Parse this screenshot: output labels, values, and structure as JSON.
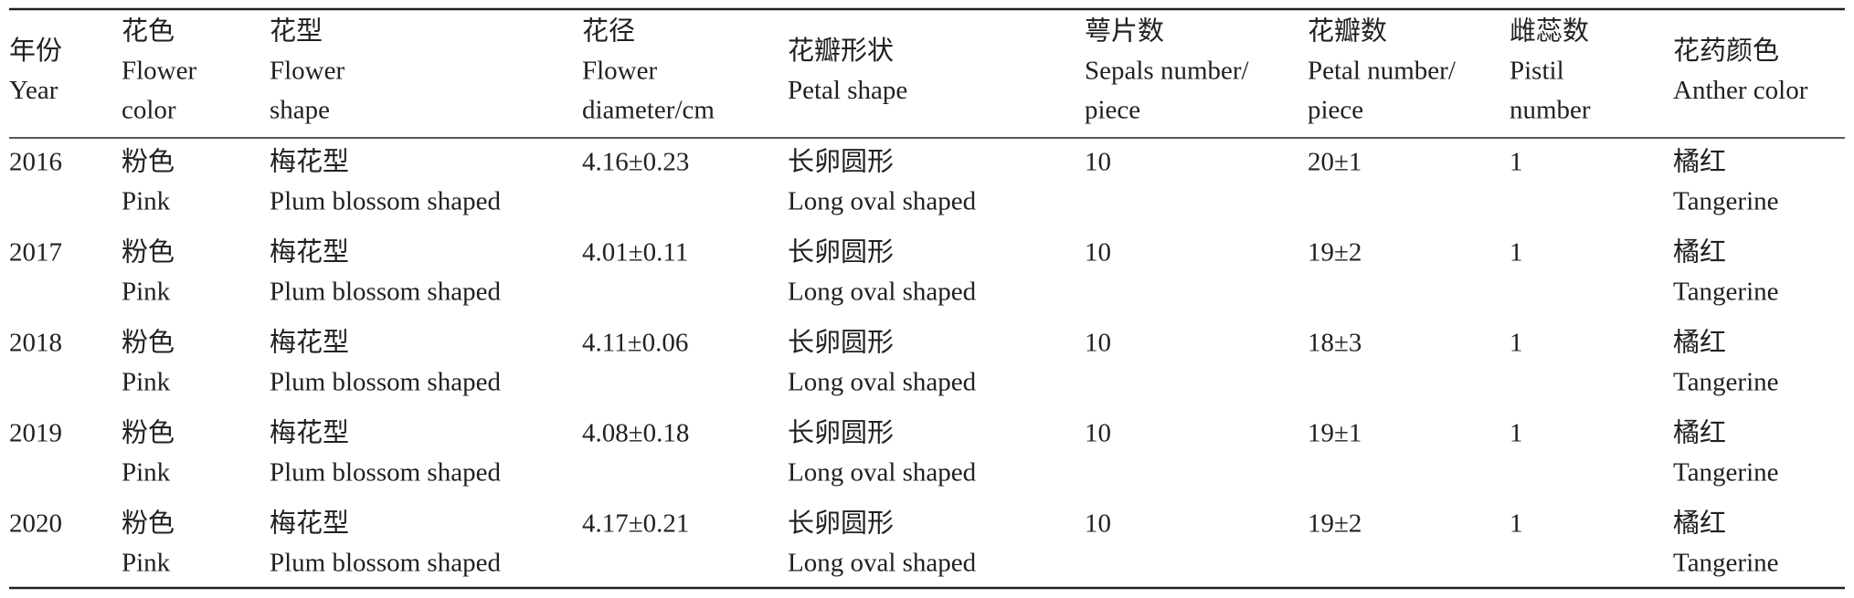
{
  "table": {
    "headers": [
      [
        "年份",
        "Year"
      ],
      [
        "花色",
        "Flower",
        "color"
      ],
      [
        "花型",
        "Flower",
        "shape"
      ],
      [
        "花径",
        "Flower",
        "diameter/cm"
      ],
      [
        "花瓣形状",
        "Petal shape"
      ],
      [
        "萼片数",
        "Sepals number/",
        "piece"
      ],
      [
        "花瓣数",
        "Petal number/",
        "piece"
      ],
      [
        "雌蕊数",
        "Pistil",
        "number"
      ],
      [
        "花药颜色",
        "Anther color"
      ]
    ],
    "rows": [
      [
        [
          "2016"
        ],
        [
          "粉色",
          "Pink"
        ],
        [
          "梅花型",
          "Plum blossom shaped"
        ],
        [
          "4.16±0.23"
        ],
        [
          "长卵圆形",
          "Long oval shaped"
        ],
        [
          "10"
        ],
        [
          "20±1"
        ],
        [
          "1"
        ],
        [
          "橘红",
          "Tangerine"
        ]
      ],
      [
        [
          "2017"
        ],
        [
          "粉色",
          "Pink"
        ],
        [
          "梅花型",
          "Plum blossom shaped"
        ],
        [
          "4.01±0.11"
        ],
        [
          "长卵圆形",
          "Long oval shaped"
        ],
        [
          "10"
        ],
        [
          "19±2"
        ],
        [
          "1"
        ],
        [
          "橘红",
          "Tangerine"
        ]
      ],
      [
        [
          "2018"
        ],
        [
          "粉色",
          "Pink"
        ],
        [
          "梅花型",
          "Plum blossom shaped"
        ],
        [
          "4.11±0.06"
        ],
        [
          "长卵圆形",
          "Long oval shaped"
        ],
        [
          "10"
        ],
        [
          "18±3"
        ],
        [
          "1"
        ],
        [
          "橘红",
          "Tangerine"
        ]
      ],
      [
        [
          "2019"
        ],
        [
          "粉色",
          "Pink"
        ],
        [
          "梅花型",
          "Plum blossom shaped"
        ],
        [
          "4.08±0.18"
        ],
        [
          "长卵圆形",
          "Long oval shaped"
        ],
        [
          "10"
        ],
        [
          "19±1"
        ],
        [
          "1"
        ],
        [
          "橘红",
          "Tangerine"
        ]
      ],
      [
        [
          "2020"
        ],
        [
          "粉色",
          "Pink"
        ],
        [
          "梅花型",
          "Plum blossom shaped"
        ],
        [
          "4.17±0.21"
        ],
        [
          "长卵圆形",
          "Long oval shaped"
        ],
        [
          "10"
        ],
        [
          "19±2"
        ],
        [
          "1"
        ],
        [
          "橘红",
          "Tangerine"
        ]
      ]
    ]
  }
}
